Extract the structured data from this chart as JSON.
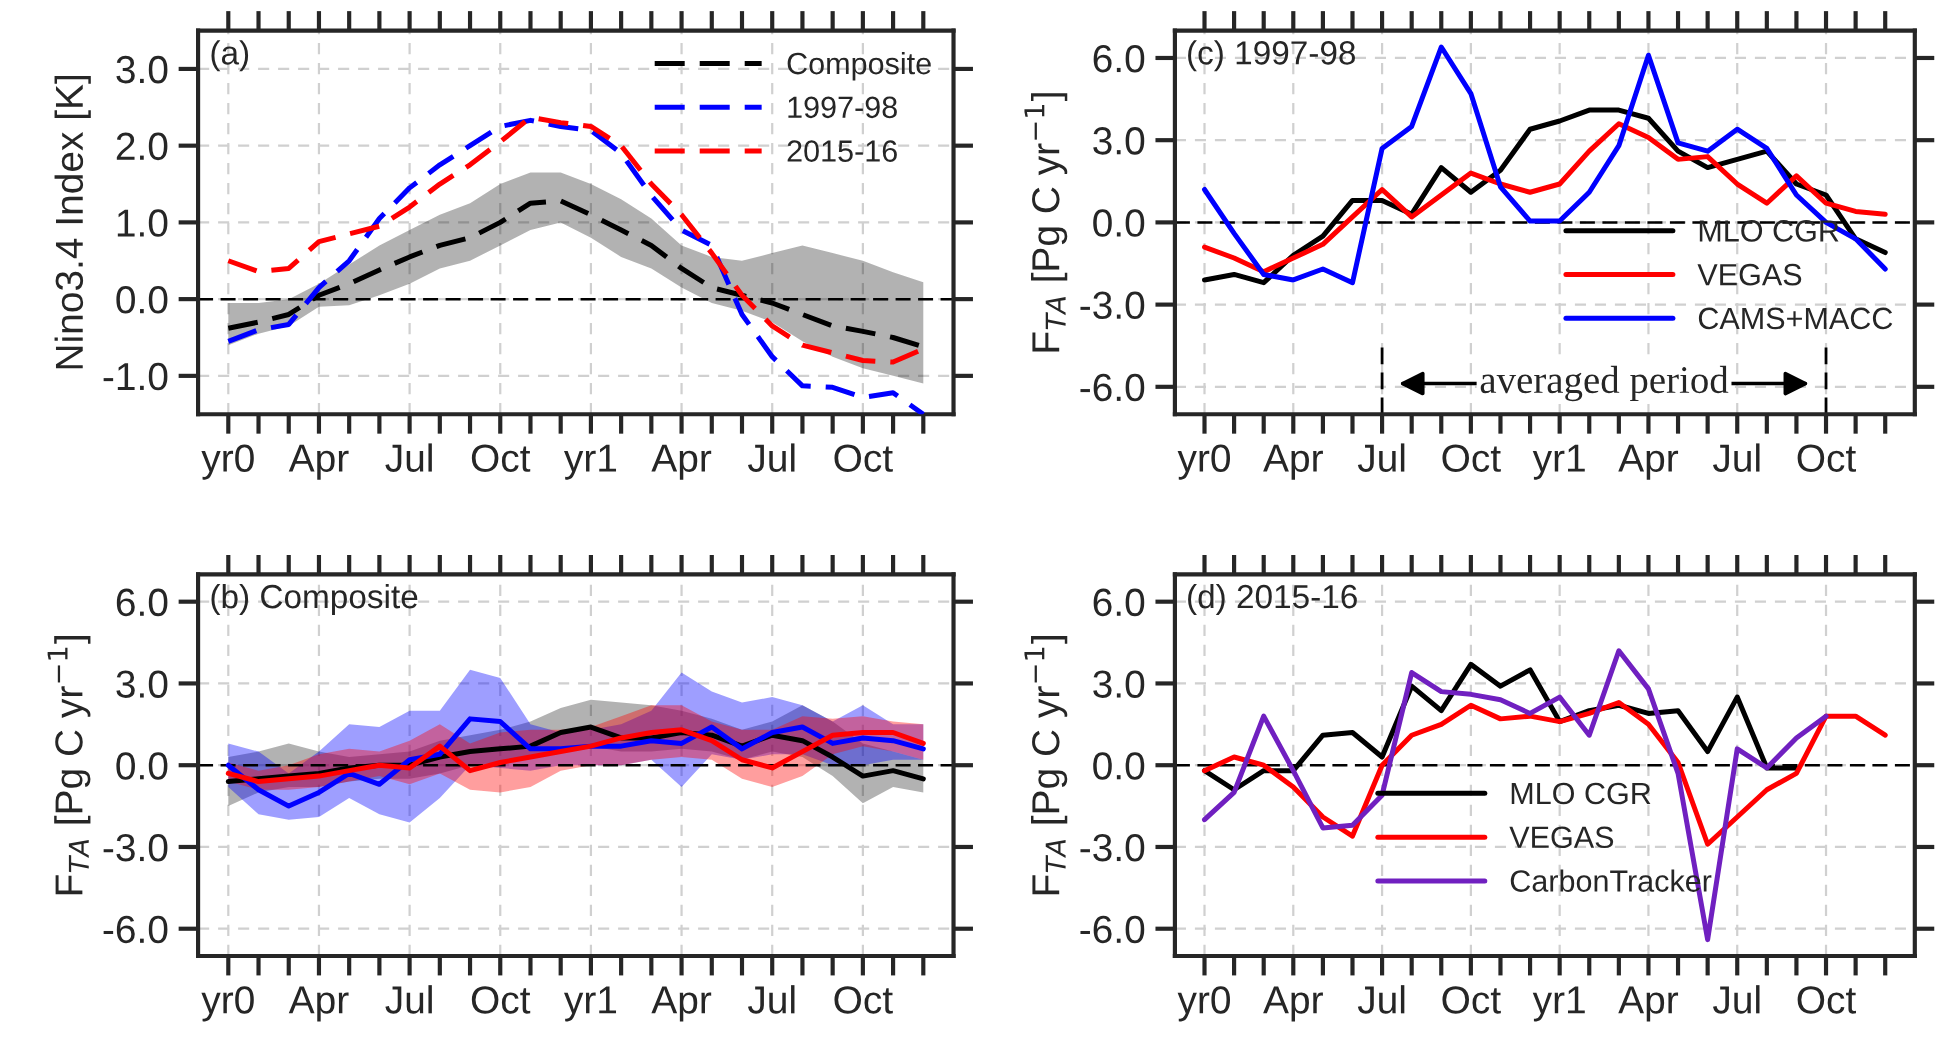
{
  "chart_data": [
    {
      "type": "line",
      "title": "(a)",
      "ylabel": "Nino3.4 Index [K]",
      "categories": [
        "yr0",
        null,
        null,
        "Apr",
        null,
        null,
        "Jul",
        null,
        null,
        "Oct",
        null,
        null,
        "yr1",
        null,
        null,
        "Apr",
        null,
        null,
        "Jul",
        null,
        null,
        "Oct",
        null,
        null
      ],
      "ylim": [
        -1.5,
        3.5
      ],
      "yticks": [
        {
          "value": -1,
          "label": "-1.0"
        },
        {
          "value": 0,
          "label": "0.0"
        },
        {
          "value": 1,
          "label": "1.0"
        },
        {
          "value": 2,
          "label": "2.0"
        },
        {
          "value": 3,
          "label": "3.0"
        }
      ],
      "grid": true,
      "legend": "top right",
      "line_style": "dashed",
      "ref_lines": [
        {
          "axis": "y",
          "value": 0,
          "color": "#000000",
          "line_style": "dashed"
        }
      ],
      "series": [
        {
          "name": "Composite",
          "color": "#000000",
          "values": [
            -0.38,
            -0.3,
            -0.2,
            0.05,
            0.2,
            0.38,
            0.55,
            0.7,
            0.8,
            1.0,
            1.25,
            1.28,
            1.1,
            0.9,
            0.7,
            0.4,
            0.15,
            0.05,
            -0.05,
            -0.2,
            -0.35,
            -0.42,
            -0.5,
            -0.62
          ],
          "lower": [
            -0.6,
            -0.45,
            -0.35,
            -0.1,
            -0.08,
            0.05,
            0.2,
            0.4,
            0.5,
            0.7,
            0.9,
            1.0,
            0.8,
            0.55,
            0.4,
            0.15,
            -0.05,
            -0.15,
            -0.3,
            -0.55,
            -0.75,
            -0.9,
            -1.0,
            -1.1
          ],
          "upper": [
            -0.05,
            -0.05,
            0.0,
            0.2,
            0.45,
            0.7,
            0.9,
            1.1,
            1.25,
            1.5,
            1.65,
            1.65,
            1.5,
            1.3,
            1.05,
            0.7,
            0.55,
            0.5,
            0.6,
            0.7,
            0.6,
            0.5,
            0.35,
            0.22
          ]
        },
        {
          "name": "1997-98",
          "color": "#0000ff",
          "values": [
            -0.55,
            -0.4,
            -0.33,
            0.15,
            0.5,
            1.05,
            1.45,
            1.75,
            2.0,
            2.25,
            2.33,
            2.25,
            2.2,
            1.9,
            1.35,
            0.9,
            0.7,
            -0.2,
            -0.75,
            -1.13,
            -1.15,
            -1.28,
            -1.22,
            -1.5
          ]
        },
        {
          "name": "2015-16",
          "color": "#ff0000",
          "values": [
            0.5,
            0.36,
            0.4,
            0.75,
            0.85,
            0.95,
            1.2,
            1.5,
            1.75,
            2.05,
            2.37,
            2.3,
            2.25,
            2.0,
            1.5,
            1.1,
            0.6,
            0.05,
            -0.35,
            -0.6,
            -0.7,
            -0.8,
            -0.82,
            -0.65
          ]
        }
      ]
    },
    {
      "type": "line",
      "title": "(c) 1997-98",
      "ylabel": "F$_{TA}$ [Pg C yr$^{−1}$]",
      "categories": [
        "yr0",
        null,
        null,
        "Apr",
        null,
        null,
        "Jul",
        null,
        null,
        "Oct",
        null,
        null,
        "yr1",
        null,
        null,
        "Apr",
        null,
        null,
        "Jul",
        null,
        null,
        "Oct",
        null,
        null
      ],
      "ylim": [
        -7,
        7
      ],
      "yticks": [
        {
          "value": -6,
          "label": "-6.0"
        },
        {
          "value": -3,
          "label": "-3.0"
        },
        {
          "value": 0,
          "label": "0.0"
        },
        {
          "value": 3,
          "label": "3.0"
        },
        {
          "value": 6,
          "label": "6.0"
        }
      ],
      "grid": true,
      "legend": "bottom right",
      "line_style": "solid",
      "ref_lines": [
        {
          "axis": "y",
          "value": 0,
          "color": "#000000",
          "line_style": "dashed"
        }
      ],
      "annotations": [
        "averaged period"
      ],
      "series": [
        {
          "name": "MLO CGR",
          "color": "#000000",
          "values": [
            -2.1,
            -1.9,
            -2.2,
            -1.2,
            -0.5,
            0.8,
            0.8,
            0.3,
            2.0,
            1.1,
            1.9,
            3.4,
            3.7,
            4.1,
            4.1,
            3.8,
            2.6,
            2.0,
            2.3,
            2.6,
            1.4,
            1.0,
            -0.6,
            -1.1
          ]
        },
        {
          "name": "VEGAS",
          "color": "#ff0000",
          "values": [
            -0.9,
            -1.3,
            -1.8,
            -1.3,
            -0.8,
            0.2,
            1.2,
            0.2,
            1.0,
            1.8,
            1.4,
            1.1,
            1.4,
            2.6,
            3.6,
            3.1,
            2.3,
            2.4,
            1.4,
            0.7,
            1.7,
            0.7,
            0.4,
            0.3
          ]
        },
        {
          "name": "CAMS+MACC",
          "color": "#0000ff",
          "values": [
            1.2,
            -0.4,
            -1.9,
            -2.1,
            -1.7,
            -2.2,
            2.7,
            3.5,
            6.4,
            4.7,
            1.3,
            0.05,
            0.05,
            1.1,
            2.8,
            6.1,
            2.9,
            2.6,
            3.4,
            2.7,
            1.0,
            0.0,
            -0.6,
            -1.7
          ]
        }
      ]
    },
    {
      "type": "line",
      "title": "(b) Composite",
      "ylabel": "F$_{TA}$ [Pg C yr$^{−1}$]",
      "categories": [
        "yr0",
        null,
        null,
        "Apr",
        null,
        null,
        "Jul",
        null,
        null,
        "Oct",
        null,
        null,
        "yr1",
        null,
        null,
        "Apr",
        null,
        null,
        "Jul",
        null,
        null,
        "Oct",
        null,
        null
      ],
      "ylim": [
        -7,
        7
      ],
      "yticks": [
        {
          "value": -6,
          "label": "-6.0"
        },
        {
          "value": -3,
          "label": "-3.0"
        },
        {
          "value": 0,
          "label": "0.0"
        },
        {
          "value": 3,
          "label": "3.0"
        },
        {
          "value": 6,
          "label": "6.0"
        }
      ],
      "grid": true,
      "line_style": "solid",
      "ref_lines": [
        {
          "axis": "y",
          "value": 0,
          "color": "#000000",
          "line_style": "dashed"
        }
      ],
      "series": [
        {
          "color": "#000000",
          "values": [
            -0.6,
            -0.5,
            -0.4,
            -0.3,
            -0.1,
            0.0,
            0.0,
            0.3,
            0.5,
            0.6,
            0.7,
            1.2,
            1.4,
            1.0,
            1.0,
            1.2,
            1.1,
            0.7,
            1.1,
            0.9,
            0.3,
            -0.4,
            -0.2,
            -0.5
          ],
          "lower": [
            -1.5,
            -1.0,
            -0.8,
            -0.8,
            -0.6,
            -0.5,
            -0.5,
            -0.3,
            0.0,
            0.1,
            0.3,
            0.6,
            0.7,
            0.5,
            0.5,
            0.6,
            0.5,
            0.2,
            0.5,
            0.3,
            -0.4,
            -1.4,
            -0.8,
            -1.0
          ],
          "upper": [
            0.3,
            0.5,
            0.8,
            0.5,
            0.3,
            0.4,
            0.5,
            0.9,
            1.1,
            1.3,
            1.6,
            2.1,
            2.4,
            2.3,
            2.2,
            2.0,
            1.7,
            1.3,
            1.6,
            2.2,
            1.6,
            0.8,
            0.5,
            0.2
          ]
        },
        {
          "color": "#0000ff",
          "values": [
            0.0,
            -0.9,
            -1.5,
            -1.0,
            -0.3,
            -0.7,
            0.2,
            0.4,
            1.7,
            1.6,
            0.6,
            0.6,
            0.7,
            0.7,
            0.9,
            0.8,
            1.4,
            0.6,
            1.2,
            1.4,
            0.8,
            1.0,
            0.9,
            0.6
          ],
          "lower": [
            -0.8,
            -1.8,
            -2.0,
            -1.9,
            -1.2,
            -1.8,
            -2.1,
            -1.2,
            0.0,
            -0.1,
            -0.2,
            0.0,
            0.0,
            0.0,
            0.2,
            -0.8,
            0.4,
            0.2,
            0.4,
            0.4,
            0.0,
            0.0,
            0.2,
            0.2
          ],
          "upper": [
            0.8,
            0.5,
            -0.3,
            0.5,
            1.5,
            1.4,
            2.0,
            2.0,
            3.5,
            3.2,
            1.5,
            1.2,
            1.3,
            1.5,
            2.0,
            3.4,
            2.7,
            2.3,
            2.5,
            2.2,
            1.6,
            2.2,
            1.5,
            1.5
          ]
        },
        {
          "color": "#ff0000",
          "values": [
            -0.3,
            -0.6,
            -0.5,
            -0.4,
            -0.2,
            0.0,
            -0.1,
            0.7,
            -0.2,
            0.1,
            0.3,
            0.5,
            0.7,
            1.0,
            1.2,
            1.3,
            0.9,
            0.2,
            -0.1,
            0.5,
            1.1,
            1.2,
            1.2,
            0.8
          ],
          "lower": [
            -0.6,
            -0.9,
            -0.9,
            -0.8,
            -0.6,
            -0.4,
            -0.7,
            -0.3,
            -0.9,
            -1.0,
            -0.8,
            -0.2,
            0.0,
            0.0,
            0.2,
            0.3,
            0.2,
            -0.5,
            -0.8,
            -0.4,
            0.4,
            0.7,
            0.5,
            0.2
          ],
          "upper": [
            0.1,
            -0.2,
            0.0,
            0.4,
            0.6,
            0.5,
            0.9,
            1.5,
            0.8,
            1.2,
            1.3,
            1.3,
            1.4,
            1.8,
            2.2,
            2.2,
            1.6,
            1.3,
            1.3,
            1.8,
            1.7,
            1.8,
            1.6,
            1.5
          ]
        }
      ]
    },
    {
      "type": "line",
      "title": "(d) 2015-16",
      "ylabel": "F$_{TA}$ [Pg C yr$^{−1}$]",
      "categories": [
        "yr0",
        null,
        null,
        "Apr",
        null,
        null,
        "Jul",
        null,
        null,
        "Oct",
        null,
        null,
        "yr1",
        null,
        null,
        "Apr",
        null,
        null,
        "Jul",
        null,
        null,
        "Oct",
        null,
        null
      ],
      "ylim": [
        -7,
        7
      ],
      "yticks": [
        {
          "value": -6,
          "label": "-6.0"
        },
        {
          "value": -3,
          "label": "-3.0"
        },
        {
          "value": 0,
          "label": "0.0"
        },
        {
          "value": 3,
          "label": "3.0"
        },
        {
          "value": 6,
          "label": "6.0"
        }
      ],
      "grid": true,
      "legend": "bottom",
      "line_style": "solid",
      "ref_lines": [
        {
          "axis": "y",
          "value": 0,
          "color": "#000000",
          "line_style": "dashed"
        }
      ],
      "series": [
        {
          "name": "MLO CGR",
          "color": "#000000",
          "values": [
            -0.2,
            -0.9,
            -0.2,
            -0.2,
            1.1,
            1.2,
            0.3,
            2.9,
            2.0,
            3.7,
            2.9,
            3.5,
            1.6,
            2.0,
            2.2,
            1.9,
            2.0,
            0.5,
            2.5,
            -0.1,
            -0.1,
            null,
            null,
            null
          ]
        },
        {
          "name": "VEGAS",
          "color": "#ff0000",
          "values": [
            -0.2,
            0.3,
            0.0,
            -0.8,
            -1.9,
            -2.6,
            0.0,
            1.1,
            1.5,
            2.2,
            1.7,
            1.8,
            1.6,
            1.9,
            2.3,
            1.5,
            0.1,
            -2.9,
            -1.9,
            -0.9,
            -0.3,
            1.8,
            1.8,
            1.1
          ]
        },
        {
          "name": "CarbonTracker",
          "color": "#7020c0",
          "values": [
            -2.0,
            -1.0,
            1.8,
            -0.2,
            -2.3,
            -2.2,
            -1.1,
            3.4,
            2.7,
            2.6,
            2.4,
            1.9,
            2.5,
            1.1,
            4.2,
            2.8,
            -0.3,
            -6.4,
            0.6,
            -0.1,
            1.0,
            1.8,
            null,
            null
          ]
        }
      ]
    }
  ]
}
